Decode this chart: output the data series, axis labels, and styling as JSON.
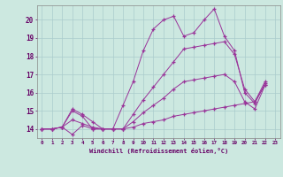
{
  "background_color": "#cce8e0",
  "grid_color": "#aacccc",
  "line_color": "#993399",
  "marker_color": "#993399",
  "xlabel": "Windchill (Refroidissement éolien,°C)",
  "xlabel_color": "#660066",
  "tick_color": "#660066",
  "xlim": [
    -0.5,
    23.5
  ],
  "ylim": [
    13.5,
    20.8
  ],
  "yticks": [
    14,
    15,
    16,
    17,
    18,
    19,
    20
  ],
  "xticks": [
    0,
    1,
    2,
    3,
    4,
    5,
    6,
    7,
    8,
    9,
    10,
    11,
    12,
    13,
    14,
    15,
    16,
    17,
    18,
    19,
    20,
    21,
    22,
    23
  ],
  "series": [
    [
      14.0,
      14.0,
      14.1,
      15.0,
      14.7,
      14.0,
      14.0,
      14.0,
      15.3,
      16.6,
      18.3,
      19.5,
      20.0,
      20.2,
      19.1,
      19.3,
      20.0,
      20.6,
      19.1,
      18.3,
      16.0,
      15.4,
      16.5,
      null
    ],
    [
      14.0,
      14.0,
      14.1,
      15.1,
      14.8,
      14.4,
      14.0,
      14.0,
      14.0,
      14.8,
      15.6,
      16.3,
      17.0,
      17.7,
      18.4,
      18.5,
      18.6,
      18.7,
      18.8,
      18.1,
      16.2,
      15.5,
      16.6,
      null
    ],
    [
      14.0,
      14.0,
      14.1,
      14.5,
      14.3,
      14.1,
      14.0,
      14.0,
      14.0,
      14.4,
      14.9,
      15.3,
      15.7,
      16.2,
      16.6,
      16.7,
      16.8,
      16.9,
      17.0,
      16.6,
      15.5,
      15.1,
      16.4,
      null
    ],
    [
      14.0,
      14.0,
      14.1,
      13.7,
      14.2,
      14.0,
      14.0,
      14.0,
      14.0,
      14.1,
      14.3,
      14.4,
      14.5,
      14.7,
      14.8,
      14.9,
      15.0,
      15.1,
      15.2,
      15.3,
      15.4,
      15.5,
      16.4,
      null
    ]
  ]
}
